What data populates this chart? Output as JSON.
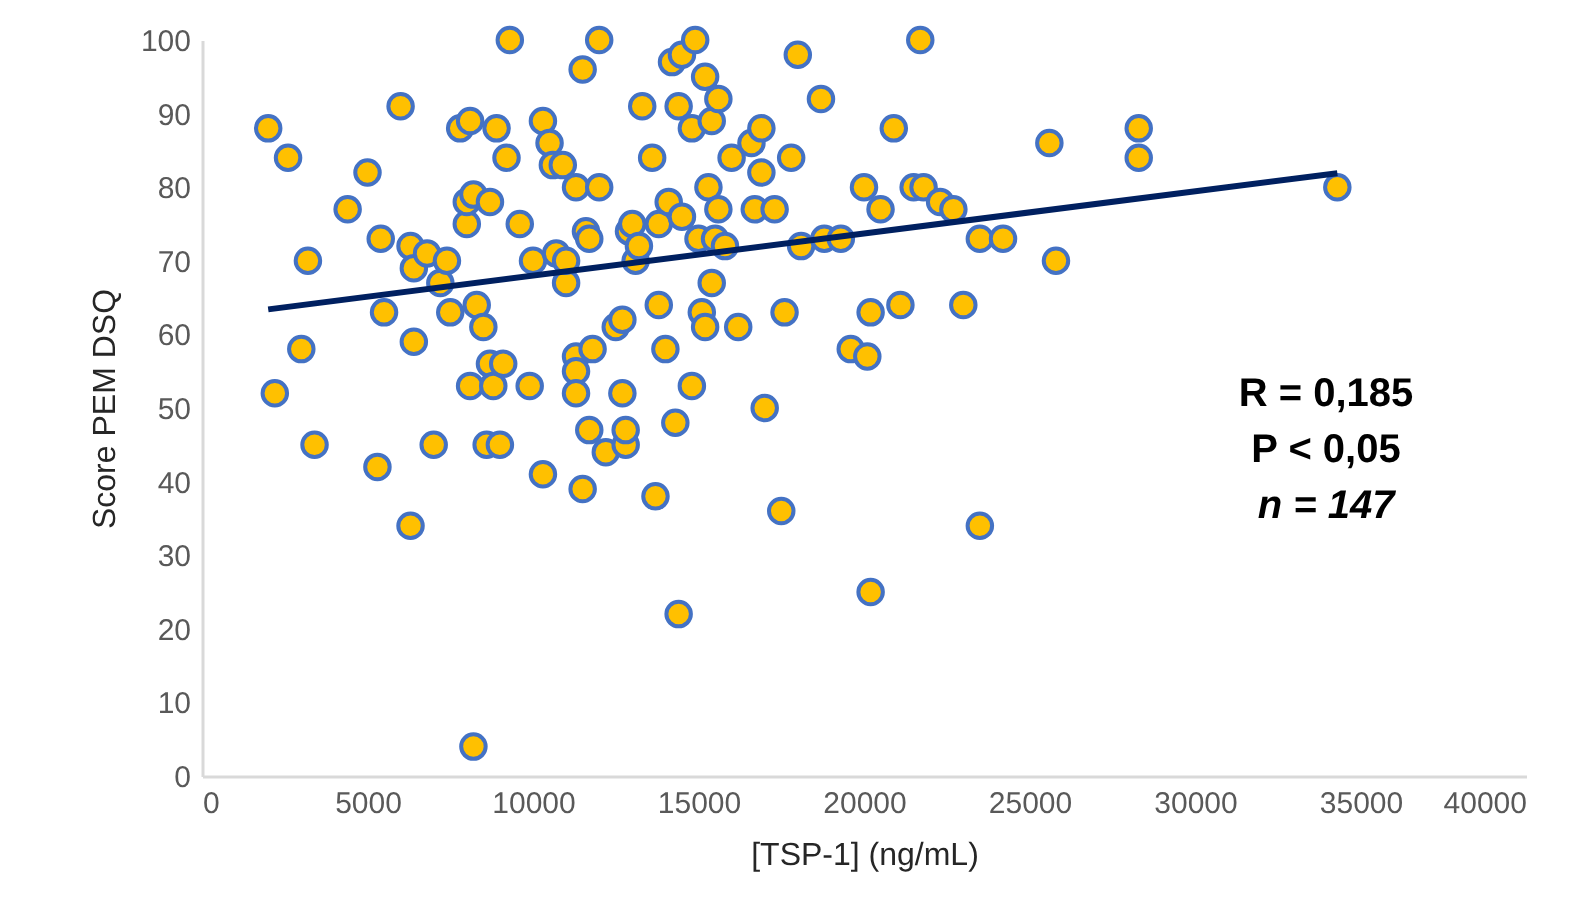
{
  "chart_data": {
    "type": "scatter",
    "xlabel": "[TSP-1] (ng/mL)",
    "ylabel": "Score PEM DSQ",
    "xlim": [
      0,
      40000
    ],
    "xticks": [
      0,
      5000,
      10000,
      15000,
      20000,
      25000,
      30000,
      35000,
      40000
    ],
    "ylim": [
      0,
      100
    ],
    "yticks": [
      0,
      10,
      20,
      30,
      40,
      50,
      60,
      70,
      80,
      90,
      100
    ],
    "grid": false,
    "marker": "circle",
    "annotations": [
      "R = 0,185",
      "P < 0,05",
      "n = 147"
    ],
    "series": [
      {
        "color": "#ffc000",
        "x": [
          2000,
          2200,
          2600,
          3000,
          3200,
          3400,
          4400,
          5000,
          5300,
          5400,
          5500,
          6000,
          6300,
          6300,
          6400,
          6400,
          6800,
          7000,
          7200,
          7400,
          7500,
          7800,
          8000,
          8000,
          8100,
          8100,
          8200,
          8200,
          8300,
          8500,
          8600,
          8700,
          8700,
          8800,
          8900,
          9000,
          9100,
          9200,
          9300,
          9600,
          9900,
          10000,
          10300,
          10300,
          10500,
          10600,
          10700,
          10900,
          11000,
          11000,
          11300,
          11300,
          11300,
          11300,
          11500,
          11500,
          11600,
          11700,
          11700,
          11800,
          12000,
          12000,
          12200,
          12500,
          12700,
          12700,
          12800,
          12800,
          12900,
          13000,
          13100,
          13200,
          13300,
          13600,
          13800,
          13800,
          13700,
          14000,
          14100,
          14200,
          14400,
          14300,
          14400,
          14500,
          14500,
          14800,
          14800,
          14900,
          15000,
          15100,
          15200,
          15200,
          15300,
          15400,
          15400,
          15500,
          15600,
          15600,
          15800,
          16000,
          16200,
          16600,
          16700,
          16900,
          16900,
          17000,
          17300,
          17500,
          17600,
          17800,
          18000,
          18100,
          18700,
          18800,
          19300,
          19600,
          20000,
          20100,
          20200,
          20200,
          20500,
          20900,
          21100,
          21500,
          21700,
          21800,
          22300,
          22700,
          23000,
          23500,
          23500,
          24200,
          25600,
          25800,
          28300,
          28300,
          34300
        ],
        "values": [
          88,
          52,
          84,
          58,
          70,
          45,
          77,
          82,
          42,
          73,
          63,
          91,
          34,
          72,
          69,
          59,
          71,
          45,
          67,
          70,
          63,
          88,
          75,
          78,
          53,
          89,
          4,
          79,
          64,
          61,
          45,
          56,
          78,
          53,
          88,
          45,
          56,
          84,
          100,
          75,
          53,
          70,
          89,
          41,
          86,
          83,
          71,
          83,
          67,
          70,
          80,
          57,
          55,
          52,
          96,
          39,
          74,
          47,
          73,
          58,
          80,
          100,
          44,
          61,
          62,
          52,
          45,
          47,
          74,
          75,
          70,
          72,
          91,
          84,
          64,
          75,
          38,
          58,
          78,
          97,
          22,
          48,
          91,
          98,
          76,
          53,
          88,
          100,
          73,
          63,
          95,
          61,
          80,
          89,
          67,
          73,
          92,
          77,
          72,
          84,
          61,
          86,
          77,
          88,
          82,
          50,
          77,
          36,
          63,
          84,
          98,
          72,
          92,
          73,
          73,
          58,
          80,
          57,
          63,
          25,
          77,
          88,
          64,
          80,
          100,
          80,
          78,
          77,
          64,
          34,
          73,
          73,
          86,
          70,
          88,
          84,
          80
        ]
      },
      {
        "type": "line",
        "color": "#002060",
        "line_style": "solid",
        "marker": "none",
        "x": [
          2000,
          34300
        ],
        "values": [
          63.4,
          81.9
        ]
      }
    ]
  }
}
